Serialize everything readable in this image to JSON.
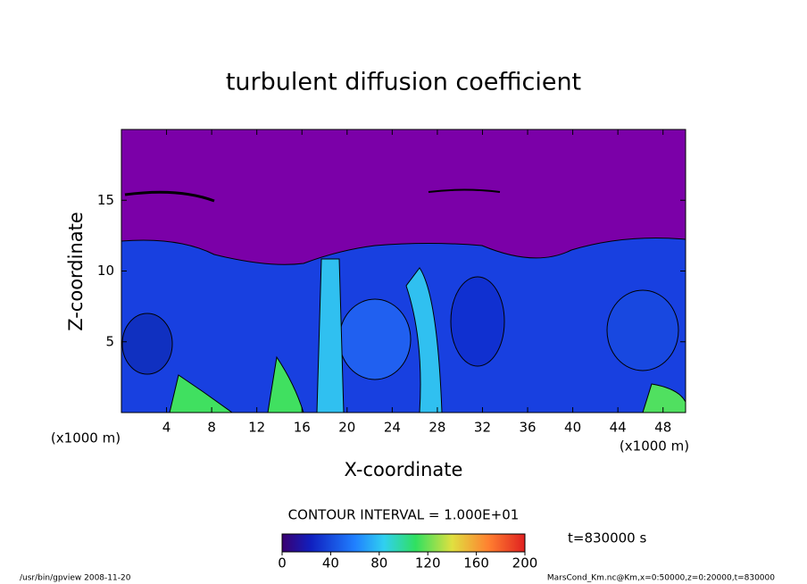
{
  "chart_data": {
    "type": "contour",
    "title": "turbulent diffusion coefficient",
    "x_label": "X-coordinate",
    "y_label": "Z-coordinate",
    "unit": "(x1000 m)",
    "xlim": [
      0,
      50
    ],
    "xticks": [
      4,
      8,
      12,
      16,
      20,
      24,
      28,
      32,
      36,
      40,
      44,
      48
    ],
    "ylim": [
      0,
      20
    ],
    "yticks": [
      5,
      10,
      15
    ],
    "contour_interval": "CONTOUR INTERVAL = 1.000E+01",
    "clim": [
      0,
      200
    ],
    "cticks": [
      0,
      40,
      80,
      120,
      160,
      200
    ],
    "time": "t=830000 s",
    "footer_left": "/usr/bin/gpview   2008-11-20",
    "footer_right": "MarsCond_Km.nc@Km,x=0:50000,z=0:20000,t=830000"
  }
}
